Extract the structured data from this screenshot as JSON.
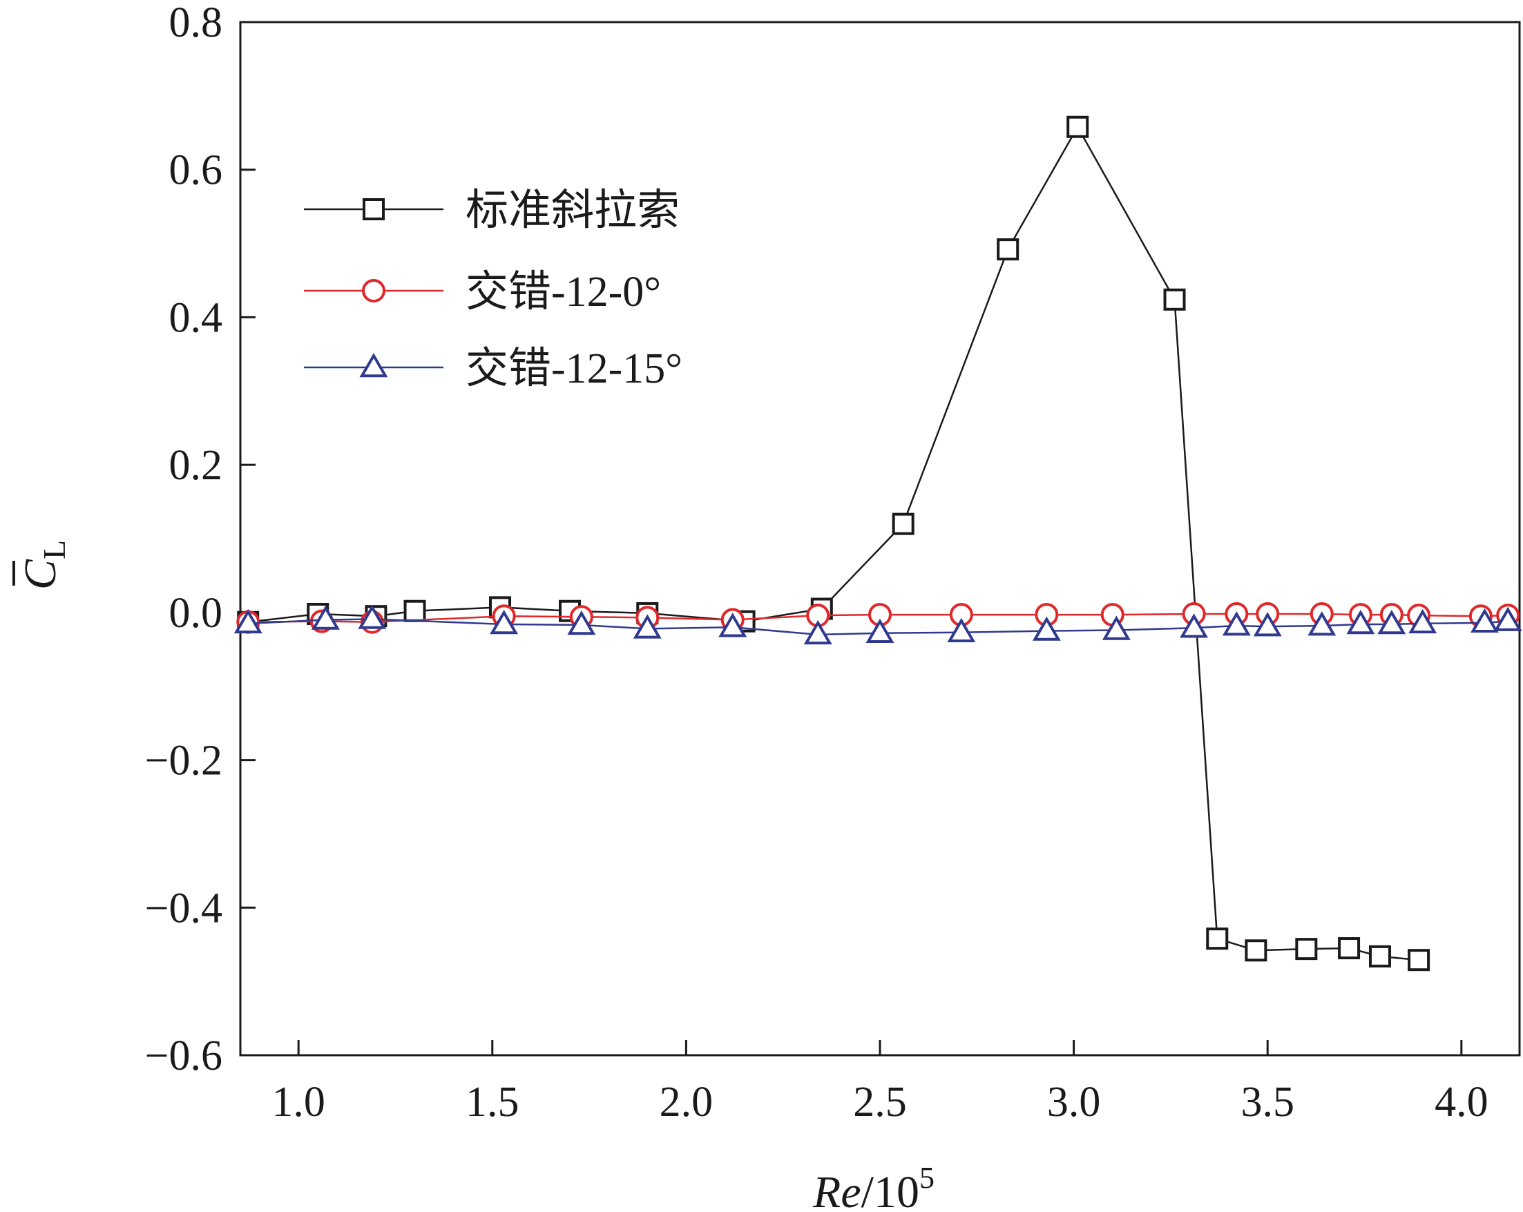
{
  "chart_data": {
    "type": "line",
    "xlabel": {
      "italic": "Re",
      "rest": "/10",
      "sup": "5"
    },
    "ylabel": {
      "main": "C",
      "sub": "L",
      "overbar": true
    },
    "xlim": [
      0.85,
      4.15
    ],
    "ylim": [
      -0.6,
      0.8
    ],
    "xticks": [
      1.0,
      1.5,
      2.0,
      2.5,
      3.0,
      3.5,
      4.0
    ],
    "yticks": [
      -0.6,
      -0.4,
      -0.2,
      0.0,
      0.2,
      0.4,
      0.6,
      0.8
    ],
    "xtick_labels": [
      "1.0",
      "1.5",
      "2.0",
      "2.5",
      "3.0",
      "3.5",
      "4.0"
    ],
    "ytick_labels": [
      "−0.6",
      "−0.4",
      "−0.2",
      "0.0",
      "0.2",
      "0.4",
      "0.6",
      "0.8"
    ],
    "grid": false,
    "legend_position": "top-left",
    "series": [
      {
        "name": "标准斜拉索",
        "color": "#1a1a1a",
        "marker": "square",
        "x": [
          0.87,
          1.05,
          1.2,
          1.3,
          1.52,
          1.7,
          1.9,
          2.15,
          2.35,
          2.56,
          2.83,
          3.01,
          3.26,
          3.37,
          3.47,
          3.6,
          3.71,
          3.79,
          3.89
        ],
        "y": [
          -0.013,
          -0.002,
          -0.005,
          0.002,
          0.007,
          0.002,
          -0.001,
          -0.012,
          0.005,
          0.12,
          0.492,
          0.658,
          0.424,
          -0.442,
          -0.458,
          -0.456,
          -0.455,
          -0.466,
          -0.471
        ]
      },
      {
        "name": "交错-12-0°",
        "color": "#e0282b",
        "marker": "circle",
        "x": [
          0.87,
          1.06,
          1.19,
          1.53,
          1.73,
          1.9,
          2.12,
          2.34,
          2.5,
          2.71,
          2.93,
          3.1,
          3.31,
          3.42,
          3.5,
          3.64,
          3.74,
          3.82,
          3.89,
          4.05,
          4.12
        ],
        "y": [
          -0.013,
          -0.012,
          -0.013,
          -0.005,
          -0.006,
          -0.007,
          -0.01,
          -0.004,
          -0.003,
          -0.003,
          -0.003,
          -0.003,
          -0.002,
          -0.002,
          -0.002,
          -0.002,
          -0.003,
          -0.003,
          -0.004,
          -0.005,
          -0.004
        ]
      },
      {
        "name": "交错-12-15°",
        "color": "#2f3a8f",
        "marker": "triangle",
        "x": [
          0.87,
          1.07,
          1.19,
          1.53,
          1.73,
          1.9,
          2.12,
          2.34,
          2.5,
          2.71,
          2.93,
          3.11,
          3.31,
          3.42,
          3.5,
          3.64,
          3.74,
          3.82,
          3.9,
          4.06,
          4.12
        ],
        "y": [
          -0.015,
          -0.01,
          -0.009,
          -0.016,
          -0.017,
          -0.022,
          -0.02,
          -0.03,
          -0.028,
          -0.027,
          -0.025,
          -0.024,
          -0.021,
          -0.018,
          -0.019,
          -0.018,
          -0.016,
          -0.016,
          -0.015,
          -0.014,
          -0.012
        ]
      }
    ]
  }
}
